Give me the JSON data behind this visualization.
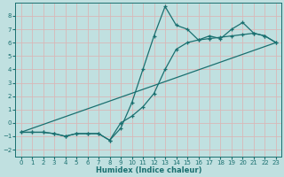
{
  "xlabel": "Humidex (Indice chaleur)",
  "bg_color": "#c0e0e0",
  "grid_color": "#d8b8b8",
  "line_color": "#1a7070",
  "xlim": [
    -0.5,
    23.5
  ],
  "ylim": [
    -2.5,
    9.0
  ],
  "xticks": [
    0,
    1,
    2,
    3,
    4,
    5,
    6,
    7,
    8,
    9,
    10,
    11,
    12,
    13,
    14,
    15,
    16,
    17,
    18,
    19,
    20,
    21,
    22,
    23
  ],
  "yticks": [
    -2,
    -1,
    0,
    1,
    2,
    3,
    4,
    5,
    6,
    7,
    8
  ],
  "line1_x": [
    0,
    1,
    2,
    3,
    4,
    5,
    6,
    7,
    8,
    9,
    10,
    11,
    12,
    13,
    14,
    15,
    16,
    17,
    18,
    19,
    20,
    21,
    22,
    23
  ],
  "line1_y": [
    -0.7,
    -0.7,
    -0.7,
    -0.8,
    -1.0,
    -0.8,
    -0.8,
    -0.8,
    -1.3,
    -0.4,
    1.5,
    4.0,
    6.5,
    8.7,
    7.3,
    7.0,
    6.2,
    6.5,
    6.3,
    7.0,
    7.5,
    6.7,
    6.5,
    6.0
  ],
  "line2_x": [
    0,
    1,
    2,
    3,
    4,
    5,
    6,
    7,
    8,
    9,
    10,
    11,
    12,
    13,
    14,
    15,
    16,
    17,
    18,
    19,
    20,
    21,
    22,
    23
  ],
  "line2_y": [
    -0.7,
    -0.7,
    -0.7,
    -0.8,
    -1.0,
    -0.8,
    -0.8,
    -0.8,
    -1.3,
    0.0,
    0.5,
    1.2,
    2.2,
    4.0,
    5.5,
    6.0,
    6.2,
    6.3,
    6.4,
    6.5,
    6.6,
    6.7,
    6.5,
    6.0
  ],
  "line3_x": [
    0,
    23
  ],
  "line3_y": [
    -0.7,
    6.0
  ]
}
